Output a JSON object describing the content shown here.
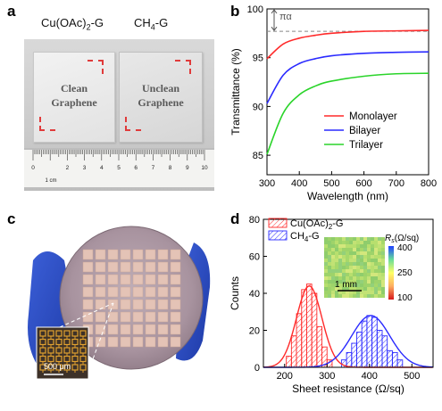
{
  "panels": {
    "a": {
      "letter": "a",
      "label_left_main": "Cu(OAc)",
      "label_left_sub": "2",
      "label_left_tail": "-G",
      "label_right_main": "CH",
      "label_right_sub": "4",
      "label_right_tail": "-G",
      "sample_left_line1": "Clean",
      "sample_left_line2": "Graphene",
      "sample_right_line1": "Unclean",
      "sample_right_line2": "Graphene",
      "ruler_unit": "1 cm",
      "ruler_numbers": [
        "0",
        "2",
        "3",
        "4",
        "5",
        "6",
        "7",
        "8",
        "9",
        "10"
      ]
    },
    "b": {
      "letter": "b"
    },
    "c": {
      "letter": "c",
      "scale_label": "500 μm"
    },
    "d": {
      "letter": "d"
    }
  },
  "chart_data": [
    {
      "type": "line",
      "panel": "b",
      "title": "",
      "xlabel": "Wavelength (nm)",
      "ylabel": "Transmittance (%)",
      "xlim": [
        300,
        800
      ],
      "ylim": [
        83,
        100
      ],
      "xticks": [
        300,
        400,
        500,
        600,
        700,
        800
      ],
      "yticks": [
        85,
        90,
        95,
        100
      ],
      "annotation": "πα",
      "reference_line_y": 97.7,
      "legend_position": "lower-right",
      "series": [
        {
          "name": "Monolayer",
          "color": "#ff2a2a",
          "x": [
            300,
            350,
            400,
            450,
            500,
            600,
            700,
            800
          ],
          "y": [
            94.9,
            96.4,
            97.0,
            97.3,
            97.5,
            97.7,
            97.75,
            97.8
          ]
        },
        {
          "name": "Bilayer",
          "color": "#2a2aff",
          "x": [
            300,
            350,
            400,
            450,
            500,
            600,
            700,
            800
          ],
          "y": [
            90.3,
            93.2,
            94.4,
            94.9,
            95.2,
            95.45,
            95.55,
            95.6
          ]
        },
        {
          "name": "Trilayer",
          "color": "#2ad42a",
          "x": [
            300,
            350,
            400,
            450,
            500,
            600,
            700,
            800
          ],
          "y": [
            85.1,
            89.3,
            91.2,
            92.1,
            92.6,
            93.1,
            93.35,
            93.4
          ]
        }
      ]
    },
    {
      "type": "bar",
      "panel": "d",
      "title": "",
      "xlabel": "Sheet resistance (Ω/sq)",
      "ylabel": "Counts",
      "xlim": [
        150,
        550
      ],
      "ylim": [
        0,
        80
      ],
      "xticks": [
        200,
        300,
        400,
        500
      ],
      "yticks": [
        0,
        20,
        40,
        60,
        80
      ],
      "legend_position": "top-left",
      "bin_width": 12,
      "series": [
        {
          "name_main": "Cu(OAc)",
          "name_sub": "2",
          "name_tail": "-G",
          "color": "#ff2a2a",
          "bin_centers": [
            210,
            222,
            234,
            246,
            258,
            270,
            282,
            294,
            306
          ],
          "counts": [
            6,
            17,
            29,
            42,
            45,
            40,
            22,
            11,
            4
          ],
          "fit_mean": 258,
          "fit_sigma": 30,
          "fit_peak": 44
        },
        {
          "name_main": "CH",
          "name_sub": "4",
          "name_tail": "-G",
          "color": "#2a2aff",
          "bin_centers": [
            340,
            352,
            364,
            376,
            388,
            400,
            412,
            424,
            436,
            448,
            460,
            472
          ],
          "counts": [
            4,
            8,
            13,
            19,
            25,
            28,
            27,
            20,
            17,
            9,
            8,
            4
          ],
          "fit_mean": 403,
          "fit_sigma": 45,
          "fit_peak": 28
        }
      ],
      "inset": {
        "symbol": "R",
        "symbol_sub": "s",
        "unit": "(Ω/sq)",
        "colorbar_ticks": [
          400,
          250,
          100
        ],
        "scale_label": "1 mm"
      }
    }
  ]
}
